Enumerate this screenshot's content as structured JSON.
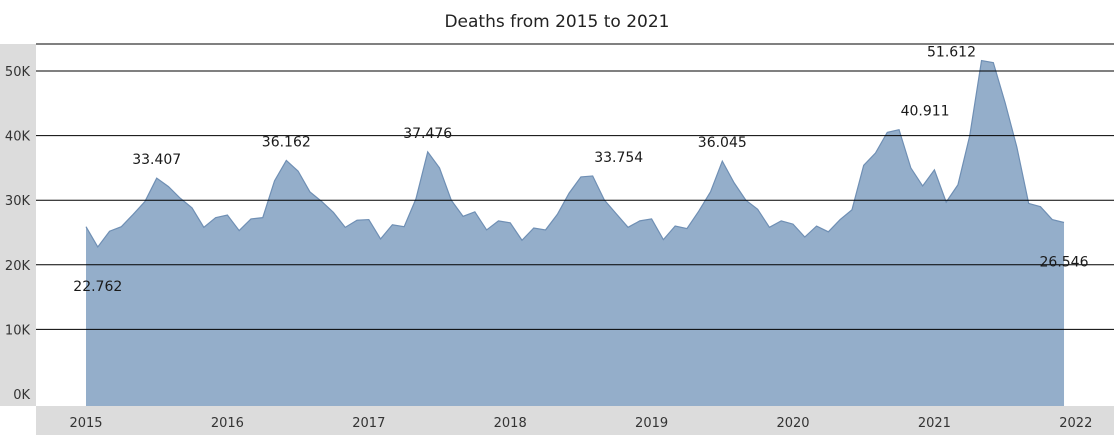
{
  "chart_data": {
    "type": "area",
    "title": "Deaths from 2015 to 2021",
    "xlabel": "",
    "ylabel": "",
    "ylim": [
      0,
      55000
    ],
    "yticks": [
      {
        "value": 0,
        "label": "0K"
      },
      {
        "value": 10000,
        "label": "10K"
      },
      {
        "value": 20000,
        "label": "20K"
      },
      {
        "value": 30000,
        "label": "30K"
      },
      {
        "value": 40000,
        "label": "40K"
      },
      {
        "value": 50000,
        "label": "50K"
      }
    ],
    "xticks": [
      "2015",
      "2016",
      "2017",
      "2018",
      "2019",
      "2020",
      "2021",
      "2022"
    ],
    "grid": true,
    "colors": {
      "area": "#94aeca",
      "line": "#6f8fb4",
      "axis_band": "#dcdcdc",
      "grid": "#000000"
    },
    "series": [
      {
        "values": [
          25900,
          22762,
          25200,
          25900,
          27800,
          29800,
          33407,
          32100,
          30300,
          28800,
          25800,
          27300,
          27700,
          25300,
          27100,
          27300,
          33000,
          36162,
          34500,
          31300,
          29800,
          28100,
          25800,
          26900,
          27000,
          24000,
          26200,
          25900,
          30200,
          37476,
          35000,
          30000,
          27500,
          28200,
          25400,
          26800,
          26500,
          23800,
          25700,
          25400,
          27800,
          31100,
          33600,
          33754,
          30000,
          27900,
          25800,
          26800,
          27100,
          23900,
          26000,
          25600,
          28300,
          31300,
          36045,
          32700,
          30000,
          28600,
          25800,
          26800,
          26300,
          24300,
          26000,
          25100,
          27000,
          28500,
          35400,
          37300,
          40500,
          40911,
          35000,
          32200,
          34700,
          29700,
          32400,
          40000,
          51612,
          51300,
          45100,
          38200,
          29500,
          29000,
          27000,
          26546
        ]
      }
    ],
    "annotations": [
      {
        "index": 1,
        "label": "22.762",
        "position": "below"
      },
      {
        "index": 6,
        "label": "33.407",
        "position": "above"
      },
      {
        "index": 17,
        "label": "36.162",
        "position": "above"
      },
      {
        "index": 29,
        "label": "37.476",
        "position": "above"
      },
      {
        "index": 43,
        "label": "33.754",
        "position": "above-right"
      },
      {
        "index": 54,
        "label": "36.045",
        "position": "above"
      },
      {
        "index": 69,
        "label": "40.911",
        "position": "above-right"
      },
      {
        "index": 76,
        "label": "51.612",
        "position": "above-left"
      },
      {
        "index": 83,
        "label": "26.546",
        "position": "below"
      }
    ]
  }
}
